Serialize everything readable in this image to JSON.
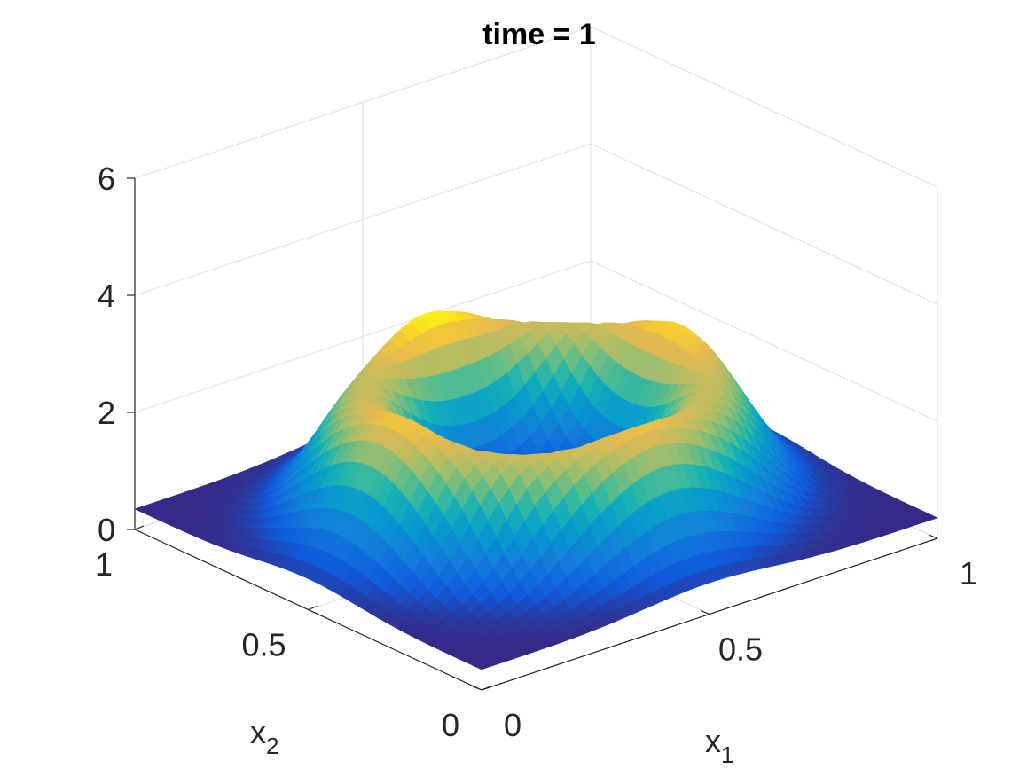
{
  "chart_data": {
    "type": "surface",
    "title": "time = 1",
    "xlabel": {
      "base": "x",
      "sub": "1"
    },
    "ylabel": {
      "base": "x",
      "sub": "2"
    },
    "zlabel": "",
    "xlim": [
      0,
      1
    ],
    "ylim": [
      0,
      1
    ],
    "zlim": [
      0,
      6
    ],
    "x_ticks": [
      0,
      0.5,
      1
    ],
    "x_tick_labels": [
      "0",
      "0.5",
      "1"
    ],
    "y_ticks": [
      0,
      0.5,
      1
    ],
    "y_tick_labels": [
      "0",
      "0.5",
      "1"
    ],
    "z_ticks": [
      0,
      2,
      4,
      6
    ],
    "z_tick_labels": [
      "0",
      "2",
      "4",
      "6"
    ],
    "grid": true,
    "colormap": "parula",
    "surface_model": {
      "baseline": 0.35,
      "ring": {
        "center": [
          0.5,
          0.5
        ],
        "radius": 0.3,
        "width": 0.09,
        "height": 2.1
      },
      "bumps": [
        {
          "x": 0.25,
          "y": 0.5,
          "sigma": 0.08,
          "height": 0.3
        },
        {
          "x": 0.8,
          "y": 0.5,
          "sigma": 0.08,
          "height": 0.35
        },
        {
          "x": 0.5,
          "y": 0.2,
          "sigma": 0.08,
          "height": 0.2
        },
        {
          "x": 0.5,
          "y": 0.8,
          "sigma": 0.08,
          "height": 0.5
        }
      ]
    }
  }
}
